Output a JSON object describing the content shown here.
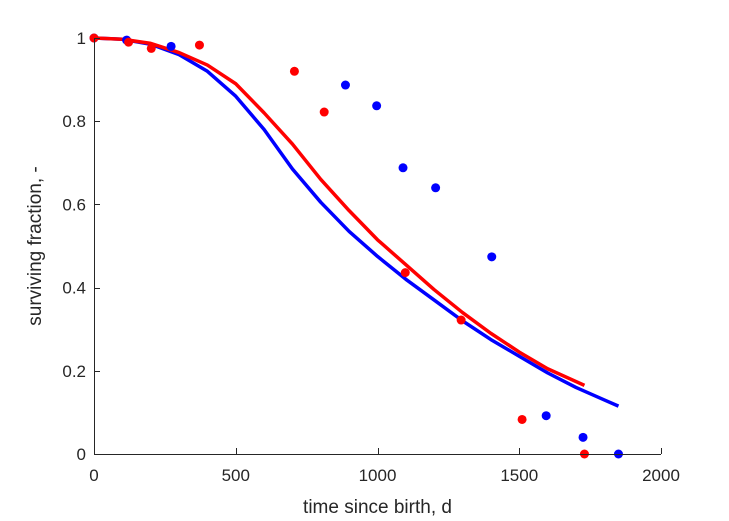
{
  "chart_data": {
    "type": "scatter",
    "xlabel": "time since birth, d",
    "ylabel": "surviving fraction, -",
    "xlim": [
      0,
      2000
    ],
    "ylim": [
      0,
      1
    ],
    "xticks": [
      0,
      500,
      1000,
      1500,
      2000
    ],
    "yticks": [
      0,
      0.2,
      0.4,
      0.6,
      0.8,
      1
    ],
    "ytick_labels": [
      "0",
      "0.2",
      "0.4",
      "0.6",
      "0.8",
      "1"
    ],
    "grid": false,
    "series": [
      {
        "kind": "scatter",
        "color": "#0000ff",
        "points": [
          [
            0,
            1.0
          ],
          [
            115,
            0.995
          ],
          [
            272,
            0.98
          ],
          [
            887,
            0.887
          ],
          [
            997,
            0.837
          ],
          [
            1090,
            0.688
          ],
          [
            1205,
            0.64
          ],
          [
            1403,
            0.474
          ],
          [
            1595,
            0.092
          ],
          [
            1725,
            0.04
          ],
          [
            1850,
            0.0
          ]
        ]
      },
      {
        "kind": "scatter",
        "color": "#ff0000",
        "points": [
          [
            0,
            1.0
          ],
          [
            122,
            0.99
          ],
          [
            202,
            0.975
          ],
          [
            372,
            0.983
          ],
          [
            707,
            0.92
          ],
          [
            812,
            0.822
          ],
          [
            1098,
            0.436
          ],
          [
            1295,
            0.322
          ],
          [
            1510,
            0.083
          ],
          [
            1730,
            0.0
          ]
        ]
      },
      {
        "kind": "line",
        "color": "#0000ff",
        "points": [
          [
            0,
            1.0
          ],
          [
            100,
            0.997
          ],
          [
            200,
            0.985
          ],
          [
            300,
            0.96
          ],
          [
            400,
            0.92
          ],
          [
            500,
            0.86
          ],
          [
            600,
            0.78
          ],
          [
            700,
            0.685
          ],
          [
            800,
            0.605
          ],
          [
            900,
            0.535
          ],
          [
            1000,
            0.475
          ],
          [
            1100,
            0.42
          ],
          [
            1200,
            0.37
          ],
          [
            1300,
            0.32
          ],
          [
            1400,
            0.275
          ],
          [
            1500,
            0.235
          ],
          [
            1600,
            0.195
          ],
          [
            1700,
            0.16
          ],
          [
            1800,
            0.13
          ],
          [
            1850,
            0.115
          ]
        ]
      },
      {
        "kind": "line",
        "color": "#ff0000",
        "points": [
          [
            0,
            1.0
          ],
          [
            100,
            0.997
          ],
          [
            200,
            0.987
          ],
          [
            300,
            0.965
          ],
          [
            400,
            0.935
          ],
          [
            500,
            0.89
          ],
          [
            600,
            0.82
          ],
          [
            700,
            0.745
          ],
          [
            800,
            0.66
          ],
          [
            900,
            0.585
          ],
          [
            1000,
            0.515
          ],
          [
            1100,
            0.455
          ],
          [
            1200,
            0.395
          ],
          [
            1300,
            0.34
          ],
          [
            1400,
            0.29
          ],
          [
            1500,
            0.245
          ],
          [
            1600,
            0.205
          ],
          [
            1730,
            0.165
          ]
        ]
      }
    ]
  }
}
